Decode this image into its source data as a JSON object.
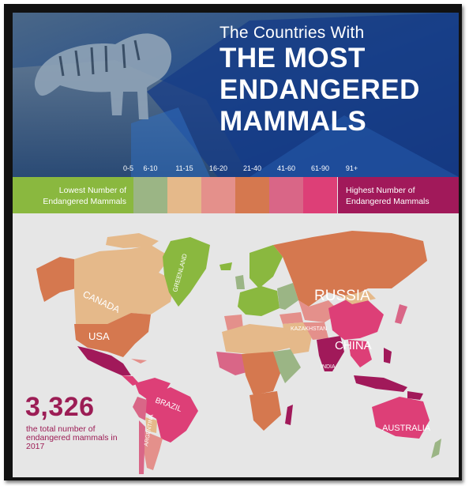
{
  "header": {
    "title_small": "The Countries With",
    "title_lines": [
      "THE MOST",
      "ENDANGERED",
      "MAMMALS"
    ]
  },
  "legend": {
    "ranges": [
      {
        "label": "0-5",
        "color": "#8ab83f"
      },
      {
        "label": "6-10",
        "color": "#9bb585"
      },
      {
        "label": "11-15",
        "color": "#e5b98a"
      },
      {
        "label": "16-20",
        "color": "#e4908b"
      },
      {
        "label": "21-40",
        "color": "#d5784f"
      },
      {
        "label": "41-60",
        "color": "#d96687"
      },
      {
        "label": "61-90",
        "color": "#dd3f77"
      },
      {
        "label": "91+",
        "color": "#a1195a"
      }
    ],
    "lowest_label": "Lowest Number of Endangered Mammals",
    "highest_label": "Highest Number of Endangered Mammals"
  },
  "map": {
    "labels": {
      "canada": "CANADA",
      "greenland": "GREENLAND",
      "usa": "USA",
      "russia": "RUSSIA",
      "kazakhstan": "KAZAKHSTAN",
      "china": "CHINA",
      "india": "INDIA",
      "brazil": "BRAZIL",
      "argentina": "ARGENTINA",
      "australia": "AUSTRALIA"
    },
    "colors": {
      "ocean": "#e6e6e6",
      "header_blue": "#1d3f8c",
      "stat_text": "#9c1d55"
    }
  },
  "stat": {
    "number": "3,326",
    "caption": "the total number of endangered mammals in 2017"
  }
}
